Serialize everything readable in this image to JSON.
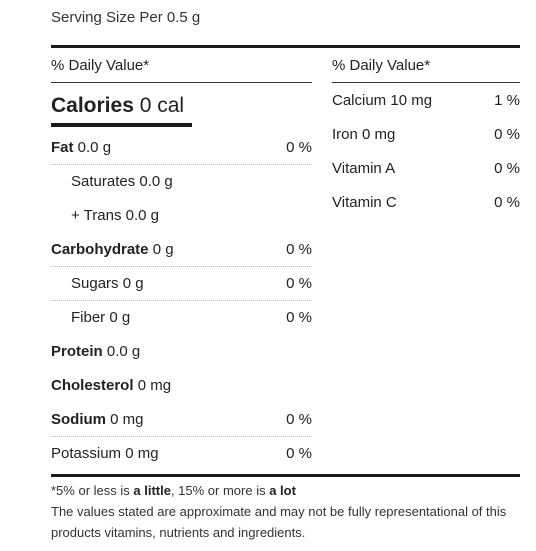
{
  "serving": "Serving Size Per 0.5 g",
  "left": {
    "dv_header": "% Daily Value*",
    "calories_label": "Calories",
    "calories_value": "0 cal",
    "rows": [
      {
        "name": "Fat",
        "value": "0.0 g",
        "pct": "0 %"
      },
      {
        "name": "Saturates",
        "value": "0.0 g",
        "pct": ""
      },
      {
        "name": "+ Trans",
        "value": "0.0 g",
        "pct": ""
      },
      {
        "name": "Carbohydrate",
        "value": "0 g",
        "pct": "0 %"
      },
      {
        "name": "Sugars",
        "value": "0 g",
        "pct": "0 %"
      },
      {
        "name": "Fiber",
        "value": "0 g",
        "pct": "0 %"
      },
      {
        "name": "Protein",
        "value": "0.0 g",
        "pct": ""
      },
      {
        "name": "Cholesterol",
        "value": "0 mg",
        "pct": ""
      },
      {
        "name": "Sodium",
        "value": "0 mg",
        "pct": "0 %"
      },
      {
        "name": "Potassium",
        "value": "0 mg",
        "pct": "0 %"
      }
    ]
  },
  "right": {
    "dv_header": "% Daily Value*",
    "rows": [
      {
        "name": "Calcium",
        "value": "10 mg",
        "pct": "1 %"
      },
      {
        "name": "Iron",
        "value": "0 mg",
        "pct": "0 %"
      },
      {
        "name": "Vitamin A",
        "value": "",
        "pct": "0 %"
      },
      {
        "name": "Vitamin C",
        "value": "",
        "pct": "0 %"
      }
    ]
  },
  "footer": {
    "line1_prefix": "*5% or less is ",
    "line1_little": "a little",
    "line1_mid": ", 15% or more is ",
    "line1_lot": "a lot",
    "line2": "The values stated are approximate and may not be fully representational of this products vitamins, nutrients and ingredients."
  }
}
